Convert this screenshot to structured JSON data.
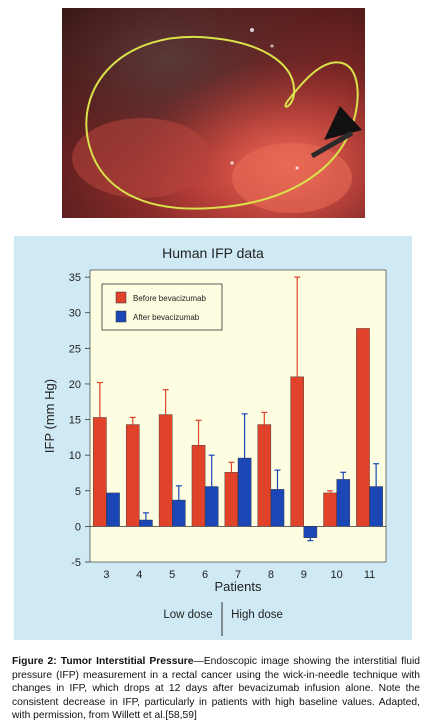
{
  "image_description_name": "endoscopic-image",
  "chart_data": {
    "type": "bar",
    "title": "Human IFP data",
    "xlabel": "Patients",
    "ylabel": "IFP (mm Hg)",
    "ylim": [
      -5,
      36
    ],
    "yticks": [
      -5,
      0,
      5,
      10,
      15,
      20,
      25,
      30,
      35
    ],
    "categories": [
      "3",
      "4",
      "5",
      "6",
      "7",
      "8",
      "9",
      "10",
      "11"
    ],
    "series": [
      {
        "name": "Before bevacizumab",
        "color": "#e0422a",
        "values": [
          15.3,
          14.3,
          15.7,
          11.4,
          7.6,
          14.3,
          21.0,
          4.7,
          27.8
        ],
        "errors": [
          4.9,
          1.0,
          3.5,
          3.5,
          1.4,
          1.7,
          14.0,
          0.3,
          0.0
        ]
      },
      {
        "name": "After bevacizumab",
        "color": "#1a47b5",
        "values": [
          4.7,
          0.9,
          3.7,
          5.6,
          9.6,
          5.2,
          -1.6,
          6.6,
          5.6
        ],
        "errors": [
          0.0,
          1.0,
          2.0,
          4.4,
          6.2,
          2.7,
          0.4,
          1.0,
          3.2
        ]
      }
    ],
    "legend_placement": "top-left",
    "grid": false,
    "dose_groups": [
      {
        "label": "Low dose"
      },
      {
        "label": "High dose"
      }
    ]
  },
  "caption": {
    "title": "Figure 2: Tumor Interstitial Pressure",
    "text": "—Endoscopic image showing the interstitial fluid pressure (IFP) measurement in a rectal cancer using the wick-in-needle technique with changes in IFP, which drops at 12 days after bevacizumab infusion alone. Note the consistent decrease in IFP, particularly in patients with high baseline values. Adapted, with permission, from Willett et al.[58,59]"
  }
}
